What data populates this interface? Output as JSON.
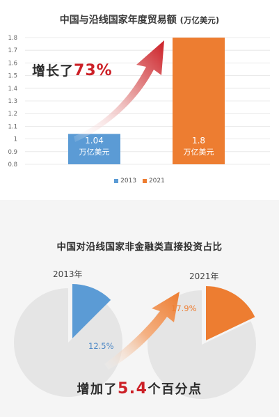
{
  "chart_data": [
    {
      "type": "bar",
      "title": "中国与沿线国家年度贸易额",
      "title_unit": "(万亿美元)",
      "categories": [
        "2013",
        "2021"
      ],
      "values": [
        1.04,
        1.8
      ],
      "value_labels": [
        "1.04",
        "1.8"
      ],
      "value_unit": "万亿美元",
      "colors": [
        "#5b9bd5",
        "#ed7d31"
      ],
      "ylim": [
        0.8,
        1.8
      ],
      "yticks": [
        "0.8",
        "0.9",
        "1",
        "1.1",
        "1.2",
        "1.3",
        "1.4",
        "1.5",
        "1.6",
        "1.7",
        "1.8"
      ],
      "legend": [
        "2013",
        "2021"
      ],
      "legend_position": "bottom",
      "annotation": {
        "prefix": "增长了",
        "value": "73%"
      }
    },
    {
      "type": "pie",
      "title": "中国对沿线国家非金融类直接投资占比",
      "pies": [
        {
          "label": "2013年",
          "value": 12.5,
          "value_label": "12.5%",
          "color": "#5b9bd5"
        },
        {
          "label": "2021年",
          "value": 17.9,
          "value_label": "17.9%",
          "color": "#ed7d31"
        }
      ],
      "annotation": {
        "prefix": "增加了",
        "value": "5.4",
        "suffix": "个百分点"
      }
    }
  ]
}
